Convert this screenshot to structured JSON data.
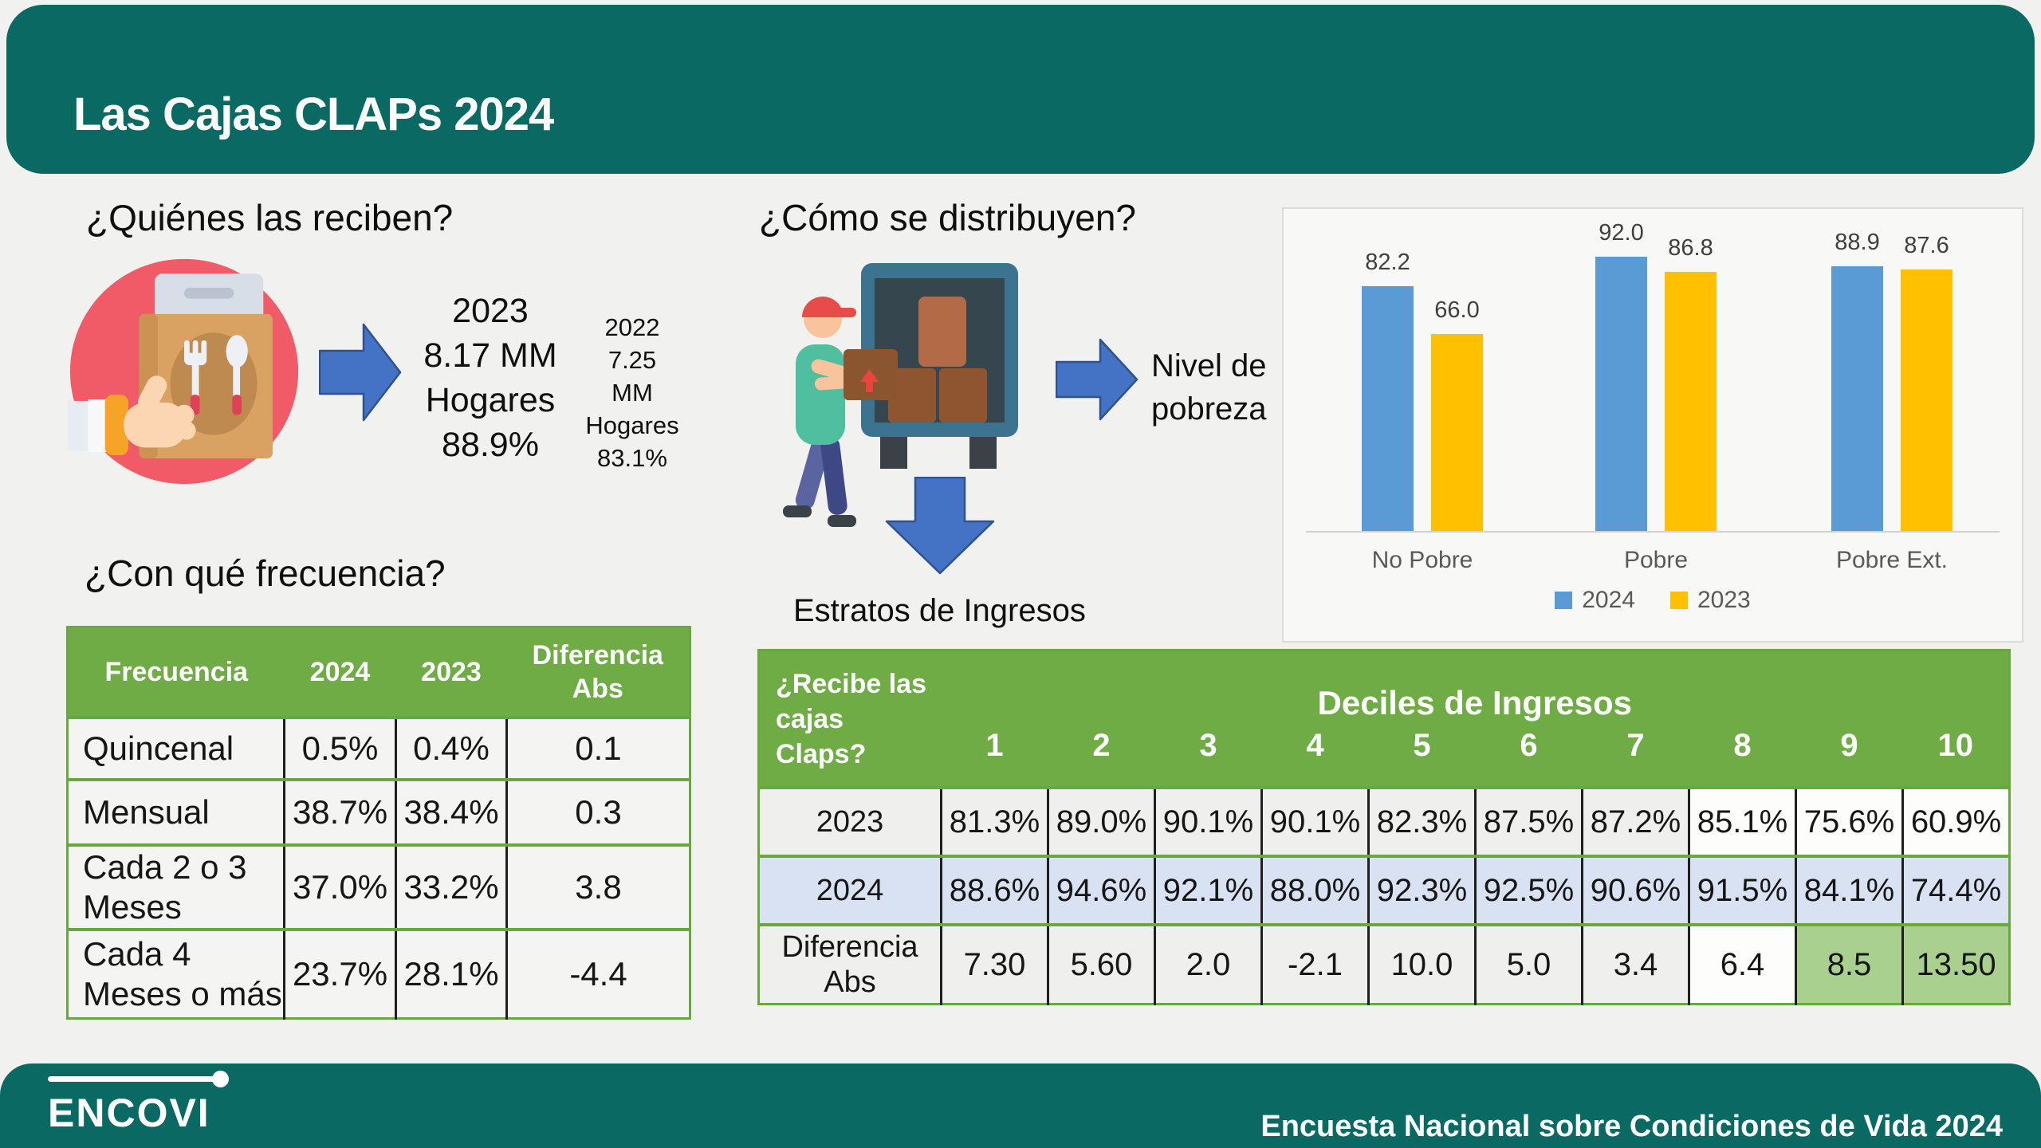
{
  "slide": {
    "title": "Las Cajas CLAPs 2024",
    "footer": {
      "logo_text": "ENCOVI",
      "right_text": "Encuesta Nacional sobre Condiciones de Vida 2024"
    }
  },
  "recipients": {
    "heading": "¿Quiénes las reciben?",
    "icon": "food-bag-hand-icon",
    "year_2023": {
      "lines": [
        "2023",
        "8.17 MM",
        "Hogares",
        "88.9%"
      ]
    },
    "year_2022": {
      "lines": [
        "2022",
        "7.25",
        "MM",
        "Hogares",
        "83.1%"
      ]
    }
  },
  "frequency": {
    "heading": "¿Con qué frecuencia?",
    "table": {
      "columns": [
        "Frecuencia",
        "2024",
        "2023",
        "Diferencia Abs"
      ],
      "rows": [
        {
          "label": "Quincenal",
          "v2024": "0.5%",
          "v2023": "0.4%",
          "diff": "0.1"
        },
        {
          "label": "Mensual",
          "v2024": "38.7%",
          "v2023": "38.4%",
          "diff": "0.3"
        },
        {
          "label": "Cada 2 o 3 Meses",
          "v2024": "37.0%",
          "v2023": "33.2%",
          "diff": "3.8"
        },
        {
          "label": "Cada 4 Meses o más",
          "v2024": "23.7%",
          "v2023": "28.1%",
          "diff": "-4.4"
        }
      ]
    }
  },
  "distribution": {
    "heading": "¿Cómo se distribuyen?",
    "icon": "delivery-truck-icon",
    "right_arrow_label": "Nivel de pobreza",
    "down_arrow_label": "Estratos de Ingresos"
  },
  "chart_data": {
    "type": "bar",
    "title": "",
    "categories": [
      "No Pobre",
      "Pobre",
      "Pobre Ext."
    ],
    "series": [
      {
        "name": "2024",
        "color": "#5B9BD5",
        "values": [
          82.2,
          92.0,
          88.9
        ]
      },
      {
        "name": "2023",
        "color": "#FFC000",
        "values": [
          66.0,
          86.8,
          87.6
        ]
      }
    ],
    "ylim": [
      0,
      100
    ],
    "grid": false,
    "legend_position": "bottom",
    "data_labels": true
  },
  "deciles": {
    "corner_label": "¿Recibe las cajas Claps?",
    "group_title": "Deciles de Ingresos",
    "columns": [
      "1",
      "2",
      "3",
      "4",
      "5",
      "6",
      "7",
      "8",
      "9",
      "10"
    ],
    "rows": [
      {
        "label": "2023",
        "values": [
          "81.3%",
          "89.0%",
          "90.1%",
          "90.1%",
          "82.3%",
          "87.5%",
          "87.2%",
          "85.1%",
          "75.6%",
          "60.9%"
        ],
        "style": "plain"
      },
      {
        "label": "2024",
        "values": [
          "88.6%",
          "94.6%",
          "92.1%",
          "88.0%",
          "92.3%",
          "92.5%",
          "90.6%",
          "91.5%",
          "84.1%",
          "74.4%"
        ],
        "style": "blue"
      },
      {
        "label": "Diferencia Abs",
        "values": [
          "7.30",
          "5.60",
          "2.0",
          "-2.1",
          "10.0",
          "5.0",
          "3.4",
          "6.4",
          "8.5",
          "13.50"
        ],
        "style": "plain",
        "highlight_green": [
          8,
          9
        ]
      }
    ]
  },
  "colors": {
    "band_teal": "#0A6A63",
    "table_green": "#6FAC46",
    "grid_green_border": "#69A83E",
    "row_blue": "#D9E2F3",
    "highlight_green": "#A9D08E",
    "bar_2024": "#5B9BD5",
    "bar_2023": "#FFC000",
    "arrow_blue": "#4472C4"
  }
}
